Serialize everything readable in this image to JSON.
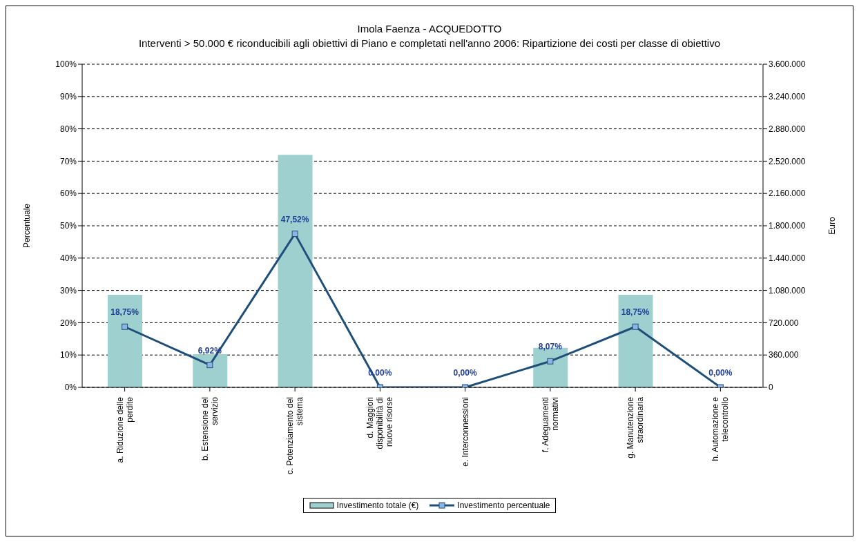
{
  "chart_data": {
    "type": "bar",
    "title": "Imola Faenza - ACQUEDOTTO",
    "subtitle": "Interventi > 50.000 € riconducibili agli obiettivi di Piano e completati nell'anno 2006: Ripartizione dei costi per classe di obiettivo",
    "ylabel": "Percentuale",
    "y2label": "Euro",
    "categories": [
      "a. Riduzione delle perdite",
      "b. Estensione del servizio",
      "c. Potenziamento del sistema",
      "d. Maggiori disponibilità di nuove risorse",
      "e. Interconnessioni",
      "f. Adeguamenti normativi",
      "g. Manutenzione straordinaria",
      "h. Automazione e telecontrollo"
    ],
    "series": [
      {
        "name": "Investimento totale (€)",
        "axis": "y2",
        "color": "#9fd0d0",
        "values": [
          1030000,
          370000,
          2590000,
          0,
          0,
          440000,
          1030000,
          0
        ]
      },
      {
        "name": "Investimento percentuale",
        "type": "line",
        "color": "#1f4e79",
        "values": [
          18.75,
          6.92,
          47.52,
          0,
          0,
          8.07,
          18.75,
          0
        ],
        "value_labels": [
          "18,75%",
          "6,92%",
          "47,52%",
          "0,00%",
          "0,00%",
          "8,07%",
          "18,75%",
          "0,00%"
        ]
      }
    ],
    "ylim": [
      0,
      100
    ],
    "yticks": [
      {
        "value": 0,
        "label": "0%"
      },
      {
        "value": 10,
        "label": "10%"
      },
      {
        "value": 20,
        "label": "20%"
      },
      {
        "value": 30,
        "label": "30%"
      },
      {
        "value": 40,
        "label": "40%"
      },
      {
        "value": 50,
        "label": "50%"
      },
      {
        "value": 60,
        "label": "60%"
      },
      {
        "value": 70,
        "label": "70%"
      },
      {
        "value": 80,
        "label": "80%"
      },
      {
        "value": 90,
        "label": "90%"
      },
      {
        "value": 100,
        "label": "100%"
      }
    ],
    "y2lim": [
      0,
      3600000
    ],
    "y2ticks": [
      0,
      {
        "value": 360000,
        "label": "360.000"
      },
      {
        "value": 720000,
        "label": "720.000"
      },
      {
        "value": 1080000,
        "label": "1.080.000"
      },
      {
        "value": 1440000,
        "label": "1.440.000"
      },
      {
        "value": 1800000,
        "label": "1.800.000"
      },
      {
        "value": 2160000,
        "label": "2.160.000"
      },
      {
        "value": 2520000,
        "label": "2.520.000"
      },
      {
        "value": 2880000,
        "label": "2.880.000"
      },
      {
        "value": 3240000,
        "label": "3.240.000"
      },
      {
        "value": 3600000,
        "label": "3.600.000"
      }
    ],
    "grid": "y",
    "legend": "bottom",
    "marker": "square",
    "line_style": "solid"
  }
}
